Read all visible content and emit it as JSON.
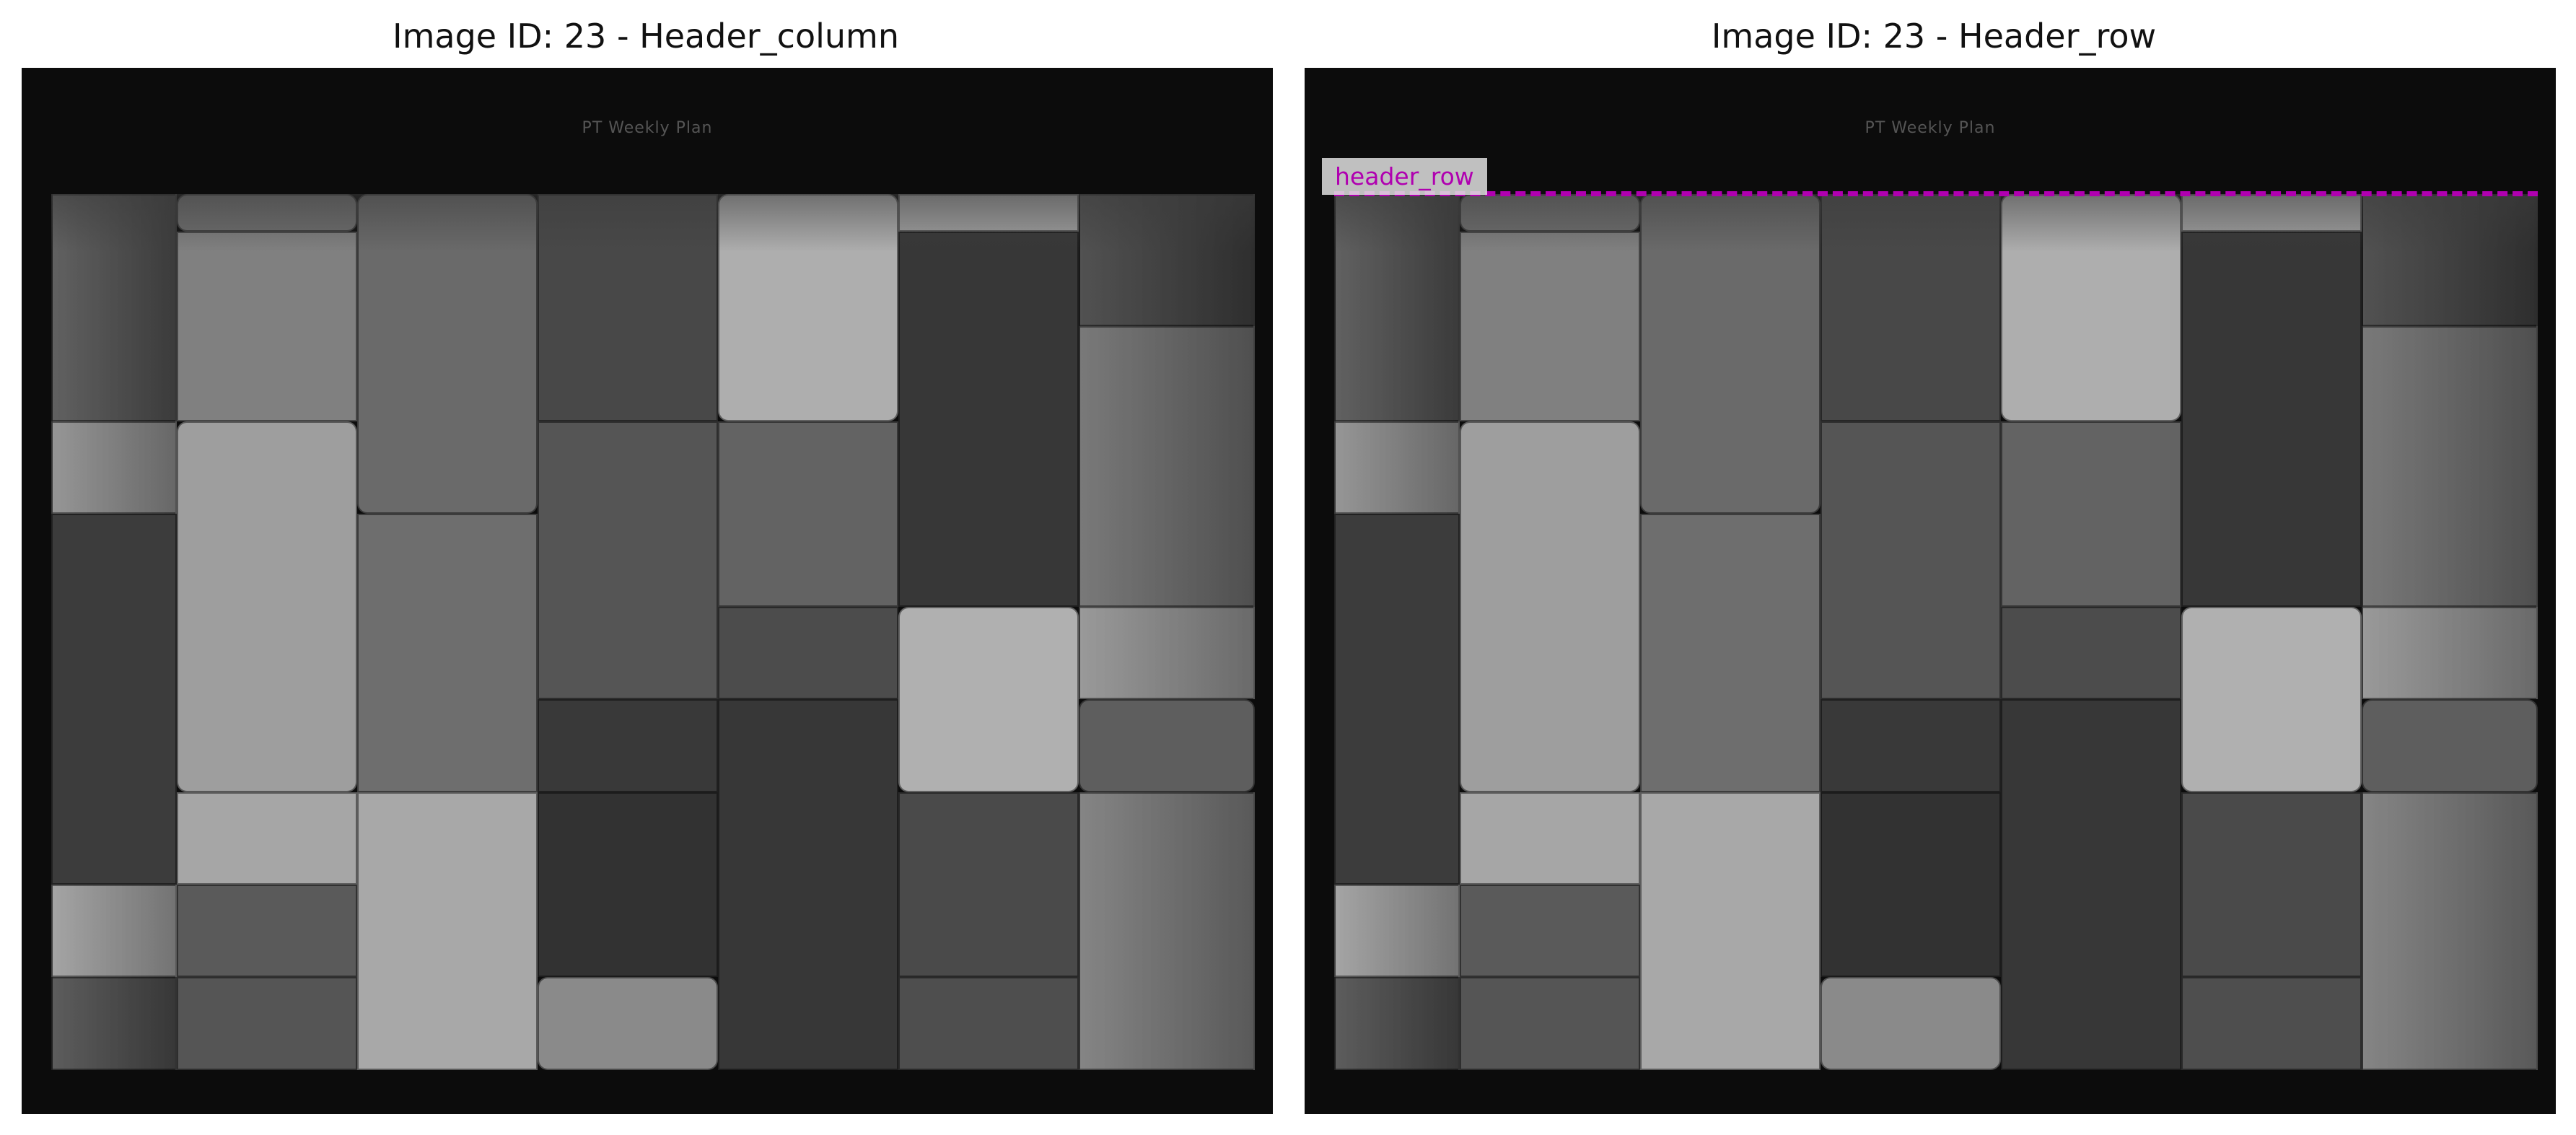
{
  "figure": {
    "panels": [
      {
        "title": "Image ID: 23 - Header_column",
        "page_title": "PT Weekly Plan",
        "annotation": ""
      },
      {
        "title": "Image ID: 23 - Header_row",
        "page_title": "PT Weekly Plan",
        "annotation": "header_row"
      }
    ],
    "colors": {
      "page": "#0c0c0c",
      "annotation": "#b000b0",
      "annotation_bg": "#e1e1e1"
    }
  }
}
